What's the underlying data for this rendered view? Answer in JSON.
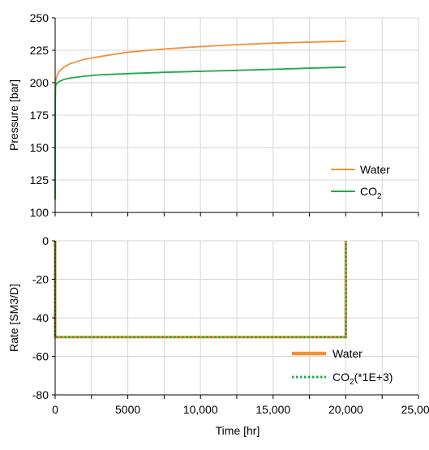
{
  "colors": {
    "water": "#f0913a",
    "co2": "#1fa84a",
    "grid": "#d6d6d6",
    "axis": "#000000"
  },
  "chart_data": [
    {
      "type": "line",
      "title": "",
      "xlabel": "",
      "ylabel": "Pressure [bar]",
      "xlim": [
        0,
        25000
      ],
      "ylim": [
        100,
        250
      ],
      "yticks": [
        "100",
        "125",
        "150",
        "175",
        "200",
        "225",
        "250"
      ],
      "grid": true,
      "legend_position": "bottom-right",
      "series": [
        {
          "name": "Water",
          "color_key": "water",
          "x": [
            0,
            1,
            20,
            100,
            300,
            600,
            1000,
            2000,
            3000,
            5000,
            7500,
            10000,
            12500,
            15000,
            17500,
            20000
          ],
          "y": [
            110,
            175,
            200,
            205,
            209,
            212,
            214.5,
            218,
            220,
            223.5,
            226,
            227.8,
            229.3,
            230.5,
            231.3,
            232
          ]
        },
        {
          "name": "CO",
          "name_subscript": "2",
          "color_key": "co2",
          "x": [
            0,
            1,
            20,
            100,
            300,
            600,
            1000,
            2000,
            3000,
            5000,
            7500,
            10000,
            12500,
            15000,
            17500,
            20000
          ],
          "y": [
            110,
            175,
            197,
            199.5,
            201,
            202.5,
            203.5,
            205,
            206,
            207,
            208,
            208.8,
            209.5,
            210.3,
            211.2,
            212
          ]
        }
      ]
    },
    {
      "type": "line",
      "title": "",
      "xlabel": "Time [hr]",
      "ylabel": "Rate [SM3/D]",
      "xlim": [
        0,
        25000
      ],
      "ylim": [
        -80,
        0
      ],
      "xticks": [
        "0",
        "5000",
        "10,000",
        "15,000",
        "20,000",
        "25,000"
      ],
      "yticks": [
        "-80",
        "-60",
        "-40",
        "-20",
        "0"
      ],
      "grid": true,
      "legend_position": "bottom-right",
      "series": [
        {
          "name": "Water",
          "color_key": "water",
          "style": "solid",
          "x": [
            0,
            0,
            20000,
            20000
          ],
          "y": [
            0,
            -50,
            -50,
            0
          ]
        },
        {
          "name": "CO",
          "name_subscript": "2",
          "name_suffix": "(*1E+3)",
          "color_key": "co2",
          "style": "dotted",
          "x": [
            0,
            0,
            20000,
            20000
          ],
          "y": [
            0,
            -50,
            -50,
            0
          ]
        }
      ]
    }
  ]
}
